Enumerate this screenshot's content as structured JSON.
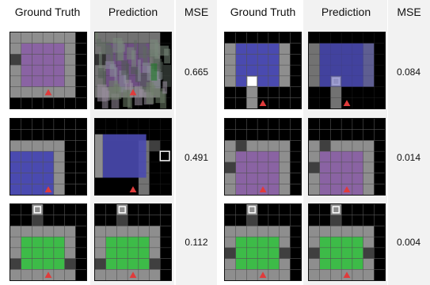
{
  "headers": {
    "left_gt": "Ground Truth",
    "left_pred": "Prediction",
    "left_mse": "MSE",
    "right_gt": "Ground Truth",
    "right_pred": "Prediction",
    "right_mse": "MSE"
  },
  "samples": [
    {
      "side": "left",
      "row": 0,
      "mse": "0.665",
      "room": "purple",
      "pred_quality": "very-blurry"
    },
    {
      "side": "left",
      "row": 1,
      "mse": "0.491",
      "room": "blue",
      "pred_quality": "misaligned"
    },
    {
      "side": "left",
      "row": 2,
      "mse": "0.112",
      "room": "green",
      "pred_quality": "good"
    },
    {
      "side": "right",
      "row": 0,
      "mse": "0.084",
      "room": "blue",
      "pred_quality": "blurry"
    },
    {
      "side": "right",
      "row": 1,
      "mse": "0.014",
      "room": "purple",
      "pred_quality": "good"
    },
    {
      "side": "right",
      "row": 2,
      "mse": "0.004",
      "room": "green",
      "pred_quality": "good"
    }
  ],
  "colors": {
    "floor": "#8e8e8e",
    "wall_dark": "#3f3f3f",
    "background": "#000000",
    "purple": "#8a63a3",
    "blue": "#4a4ab0",
    "green": "#3dbb48",
    "agent": "#e03b3b"
  }
}
